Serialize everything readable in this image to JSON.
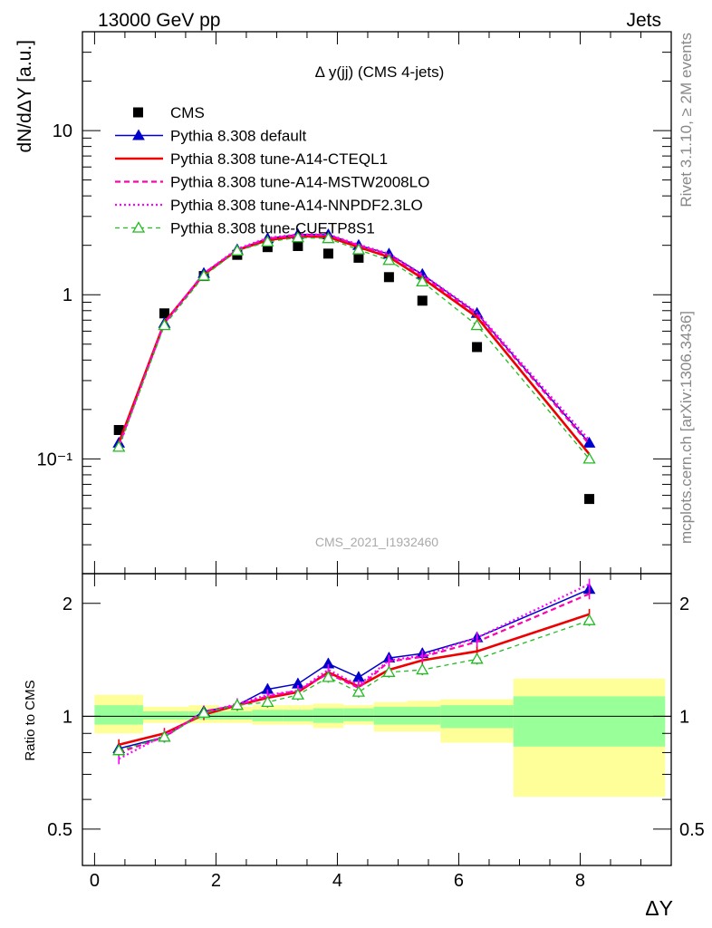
{
  "header": {
    "left": "13000 GeV pp",
    "right": "Jets"
  },
  "plot_title": "Δ y(jj) (CMS 4-jets)",
  "watermark": "CMS_2021_I1932460",
  "side_text": {
    "top": "Rivet 3.1.10, ≥ 2M events",
    "bottom": "mcplots.cern.ch [arXiv:1306.3436]"
  },
  "colors": {
    "cms": "#000000",
    "default": "#0000cc",
    "cteql1": "#ee0000",
    "mstw": "#ff00aa",
    "nnpdf": "#ff00ff",
    "cuetp8s1": "#22bb22",
    "band_inner": "#99ff99",
    "band_outer": "#ffff99"
  },
  "chart_data": [
    {
      "type": "scatter",
      "panel": "main",
      "ylabel": "dN/dΔY [a.u.]",
      "yscale": "log",
      "ylim": [
        0.02,
        40
      ],
      "xlim": [
        -0.2,
        9.5
      ],
      "y_ticks": [
        "10⁻¹",
        "1",
        "10"
      ],
      "x": [
        0.4,
        1.15,
        1.8,
        2.35,
        2.85,
        3.35,
        3.85,
        4.35,
        4.85,
        5.4,
        6.3,
        8.15
      ],
      "series": [
        {
          "name": "CMS",
          "style": "square",
          "values": [
            0.15,
            0.77,
            1.3,
            1.75,
            1.95,
            1.98,
            1.78,
            1.68,
            1.28,
            0.92,
            0.48,
            0.057
          ]
        },
        {
          "name": "Pythia 8.308 default",
          "style": "solid-triangle",
          "values": [
            0.125,
            0.67,
            1.35,
            1.88,
            2.2,
            2.33,
            2.32,
            2.0,
            1.77,
            1.33,
            0.77,
            0.125
          ]
        },
        {
          "name": "Pythia 8.308 tune-A14-CTEQL1",
          "style": "solid-thick",
          "values": [
            0.125,
            0.68,
            1.33,
            1.87,
            2.15,
            2.27,
            2.25,
            1.95,
            1.7,
            1.26,
            0.73,
            0.107
          ]
        },
        {
          "name": "Pythia 8.308 tune-A14-MSTW2008LO",
          "style": "dashed",
          "values": [
            0.12,
            0.67,
            1.35,
            1.88,
            2.2,
            2.3,
            2.3,
            2.0,
            1.74,
            1.3,
            0.76,
            0.123
          ]
        },
        {
          "name": "Pythia 8.308 tune-A14-NNPDF2.3LO",
          "style": "dotted",
          "values": [
            0.118,
            0.67,
            1.35,
            1.9,
            2.22,
            2.33,
            2.33,
            2.02,
            1.78,
            1.33,
            0.78,
            0.13
          ]
        },
        {
          "name": "Pythia 8.308 tune-CUETP8S1",
          "style": "dashed-open-triangle",
          "values": [
            0.118,
            0.65,
            1.3,
            1.85,
            2.1,
            2.23,
            2.2,
            1.88,
            1.62,
            1.2,
            0.65,
            0.1
          ]
        }
      ]
    },
    {
      "type": "line",
      "panel": "ratio",
      "ylabel": "Ratio to CMS",
      "xlabel": "ΔY",
      "yscale": "log",
      "ylim": [
        0.4,
        2.4
      ],
      "xlim": [
        -0.2,
        9.5
      ],
      "x_ticks": [
        "0",
        "2",
        "4",
        "6",
        "8"
      ],
      "y_ticks": [
        "0.5",
        "1",
        "2"
      ],
      "reference_line": 1,
      "bins": [
        [
          0,
          0.8
        ],
        [
          0.8,
          1.55
        ],
        [
          1.55,
          2.05
        ],
        [
          2.05,
          2.6
        ],
        [
          2.6,
          3.1
        ],
        [
          3.1,
          3.6
        ],
        [
          3.6,
          4.1
        ],
        [
          4.1,
          4.6
        ],
        [
          4.6,
          5.15
        ],
        [
          5.15,
          5.7
        ],
        [
          5.7,
          6.9
        ],
        [
          6.9,
          9.4
        ]
      ],
      "band_inner": [
        [
          0.95,
          1.07
        ],
        [
          0.98,
          1.03
        ],
        [
          0.98,
          1.03
        ],
        [
          0.98,
          1.03
        ],
        [
          0.97,
          1.04
        ],
        [
          0.97,
          1.04
        ],
        [
          0.96,
          1.05
        ],
        [
          0.97,
          1.05
        ],
        [
          0.95,
          1.06
        ],
        [
          0.95,
          1.06
        ],
        [
          0.93,
          1.07
        ],
        [
          0.83,
          1.13
        ]
      ],
      "band_outer": [
        [
          0.9,
          1.14
        ],
        [
          0.96,
          1.06
        ],
        [
          0.96,
          1.07
        ],
        [
          0.96,
          1.06
        ],
        [
          0.95,
          1.07
        ],
        [
          0.95,
          1.07
        ],
        [
          0.93,
          1.08
        ],
        [
          0.95,
          1.07
        ],
        [
          0.91,
          1.09
        ],
        [
          0.91,
          1.1
        ],
        [
          0.85,
          1.11
        ],
        [
          0.61,
          1.26
        ]
      ],
      "x": [
        0.4,
        1.15,
        1.8,
        2.35,
        2.85,
        3.35,
        3.85,
        4.35,
        4.85,
        5.4,
        6.3,
        8.15
      ],
      "series": [
        {
          "name": "Pythia 8.308 default",
          "values": [
            0.82,
            0.88,
            1.03,
            1.07,
            1.18,
            1.22,
            1.38,
            1.27,
            1.43,
            1.47,
            1.62,
            2.18
          ]
        },
        {
          "name": "Pythia 8.308 tune-A14-CTEQL1",
          "values": [
            0.84,
            0.9,
            1.01,
            1.07,
            1.12,
            1.16,
            1.31,
            1.2,
            1.33,
            1.41,
            1.49,
            1.87
          ]
        },
        {
          "name": "Pythia 8.308 tune-A14-MSTW2008LO",
          "values": [
            0.8,
            0.88,
            1.03,
            1.07,
            1.13,
            1.17,
            1.3,
            1.19,
            1.4,
            1.44,
            1.58,
            2.12
          ]
        },
        {
          "name": "Pythia 8.308 tune-A14-NNPDF2.3LO",
          "values": [
            0.77,
            0.89,
            1.02,
            1.08,
            1.14,
            1.17,
            1.33,
            1.21,
            1.41,
            1.45,
            1.62,
            2.25
          ]
        },
        {
          "name": "Pythia 8.308 tune-CUETP8S1",
          "values": [
            0.81,
            0.88,
            1.02,
            1.07,
            1.09,
            1.14,
            1.27,
            1.16,
            1.31,
            1.33,
            1.42,
            1.8
          ]
        }
      ]
    }
  ]
}
